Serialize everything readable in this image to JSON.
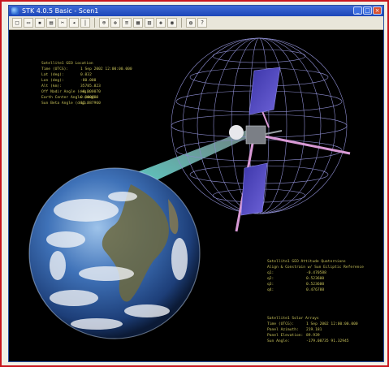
{
  "window": {
    "title": "STK 4.0.5 Basic - Scen1",
    "minimize_glyph": "_",
    "maximize_glyph": "□",
    "close_glyph": "×"
  },
  "toolbar": {
    "buttons": [
      {
        "name": "new-icon",
        "glyph": "□"
      },
      {
        "name": "open-icon",
        "glyph": "▭"
      },
      {
        "name": "save-icon",
        "glyph": "▪"
      },
      {
        "name": "print-icon",
        "glyph": "▤"
      },
      {
        "name": "cut-icon",
        "glyph": "✂"
      },
      {
        "name": "step-back-icon",
        "glyph": "◂"
      },
      {
        "name": "reset-icon",
        "glyph": "|"
      },
      {
        "name": "zoom-icon",
        "glyph": "⊕"
      },
      {
        "name": "pan-icon",
        "glyph": "✥"
      },
      {
        "name": "properties-icon",
        "glyph": "≡"
      },
      {
        "name": "graph-icon",
        "glyph": "▦"
      },
      {
        "name": "report-icon",
        "glyph": "▥"
      },
      {
        "name": "map-icon",
        "glyph": "◈"
      },
      {
        "name": "view-icon",
        "glyph": "◉"
      },
      {
        "name": "globe-icon",
        "glyph": "◍"
      },
      {
        "name": "help-icon",
        "glyph": "?"
      }
    ]
  },
  "colors": {
    "earth_ocean": "#2c5aa8",
    "grid": "#8c8ccf",
    "panel_text": "#c8c25a",
    "solar_panel": "#4a3fb0",
    "beam": "#6fd1d0",
    "boom": "#d99ad6"
  },
  "panels": {
    "top_left": {
      "title": "Satellite1 GEO Location",
      "rows": [
        {
          "k": "Time (UTCG):",
          "v": "1 Sep 2002 12:00:00.000"
        },
        {
          "k": "Lat (deg):",
          "v": "0.032"
        },
        {
          "k": "Lon (deg):",
          "v": "-80.000"
        },
        {
          "k": "Alt (km):",
          "v": "35785.823"
        },
        {
          "k": "Off Nadir Angle (deg):",
          "v": "-0.000070"
        },
        {
          "k": "Earth Center Angle (deg):",
          "v": "0.000000"
        },
        {
          "k": "Sun Beta Angle (deg):",
          "v": "11.887960"
        }
      ]
    },
    "bottom_right_1": {
      "title": "Satellite1 GEO Attitude Quaternions",
      "subtitle": "Align & Constrain w/ Sun Ecliptic Reference",
      "rows": [
        {
          "k": "q1:",
          "v": "-0.470588"
        },
        {
          "k": "q2:",
          "v": "0.523600"
        },
        {
          "k": "q3:",
          "v": "0.523600"
        },
        {
          "k": "q4:",
          "v": "0.476788"
        }
      ]
    },
    "bottom_right_2": {
      "title": "Satellite1 Solar Arrays",
      "rows": [
        {
          "k": "Time (UTCG):",
          "v": "1 Sep 2002 12:00:00.000"
        },
        {
          "k": "Panel Azimuth:",
          "v": "219.181"
        },
        {
          "k": "Panel Elevation:",
          "v": "89.939"
        },
        {
          "k": "Sun Angle:",
          "v": "-179.08735 91.32945"
        }
      ]
    }
  }
}
